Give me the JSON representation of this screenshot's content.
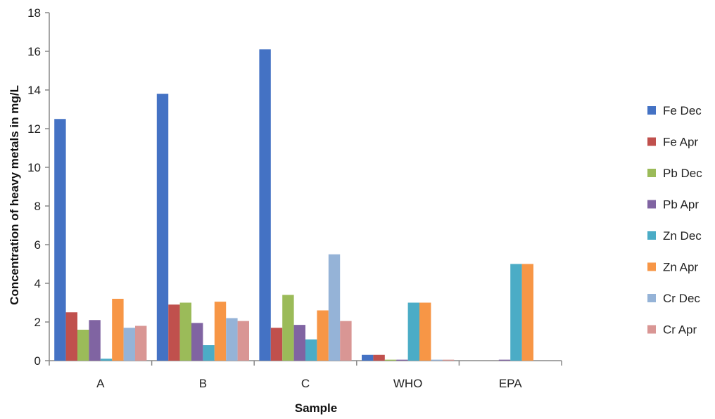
{
  "chart_data": {
    "type": "bar",
    "title": "",
    "xlabel": "Sample",
    "ylabel": "Concentration of heavy metals in mg/L",
    "categories": [
      "A",
      "B",
      "C",
      "WHO",
      "EPA"
    ],
    "ylim": [
      0,
      18
    ],
    "yticks": [
      0,
      2,
      4,
      6,
      8,
      10,
      12,
      14,
      16,
      18
    ],
    "grid": false,
    "legend_position": "right",
    "series": [
      {
        "name": "Fe Dec",
        "color": "#4472C4",
        "values": [
          12.5,
          13.8,
          16.1,
          0.3,
          0
        ]
      },
      {
        "name": "Fe Apr",
        "color": "#C0504D",
        "values": [
          2.5,
          2.9,
          1.7,
          0.3,
          0
        ]
      },
      {
        "name": "Pb Dec",
        "color": "#9BBB59",
        "values": [
          1.6,
          3.0,
          3.4,
          0.05,
          0
        ]
      },
      {
        "name": "Pb Apr",
        "color": "#8064A2",
        "values": [
          2.1,
          1.95,
          1.85,
          0.05,
          0.05
        ]
      },
      {
        "name": "Zn Dec",
        "color": "#4BACC6",
        "values": [
          0.1,
          0.8,
          1.1,
          3.0,
          5.0
        ]
      },
      {
        "name": "Zn Apr",
        "color": "#F79646",
        "values": [
          3.2,
          3.05,
          2.6,
          3.0,
          5.0
        ]
      },
      {
        "name": "Cr Dec",
        "color": "#95B3D7",
        "values": [
          1.7,
          2.2,
          5.5,
          0.05,
          0
        ]
      },
      {
        "name": "Cr Apr",
        "color": "#D99694",
        "values": [
          1.8,
          2.05,
          2.05,
          0.05,
          0
        ]
      }
    ]
  }
}
